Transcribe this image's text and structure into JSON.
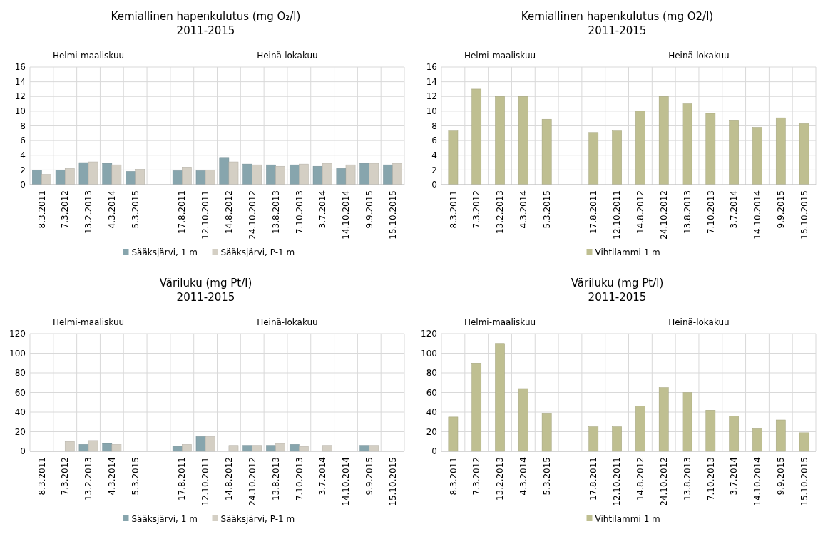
{
  "chart_data": [
    {
      "type": "bar",
      "title": "Kemiallinen hapenkulutus (mg O₂/l)",
      "subtitle": "2011-2015",
      "annotations": [
        "Helmi-maaliskuu",
        "Heinä-lokakuu"
      ],
      "categories": [
        "8.3.2011",
        "7.3.2012",
        "13.2.2013",
        "4.3.2014",
        "5.3.2015",
        null,
        "17.8.2011",
        "12.10.2011",
        "14.8.2012",
        "24.10.2012",
        "13.8.2013",
        "7.10.2013",
        "3.7.2014",
        "14.10.2014",
        "9.9.2015",
        "15.10.2015"
      ],
      "series": [
        {
          "name": "Sääksjärvi, 1 m",
          "color": "#87a5ad",
          "values": [
            2.0,
            2.0,
            3.0,
            2.9,
            1.8,
            null,
            1.9,
            1.9,
            3.7,
            2.8,
            2.7,
            2.7,
            2.5,
            2.2,
            2.9,
            2.7
          ]
        },
        {
          "name": "Sääksjärvi, P-1 m",
          "color": "#d4cfc4",
          "values": [
            1.4,
            2.2,
            3.1,
            2.7,
            2.1,
            null,
            2.4,
            2.0,
            3.1,
            2.7,
            2.5,
            2.8,
            2.9,
            2.7,
            2.9,
            2.9
          ]
        }
      ],
      "ylim": [
        0,
        16
      ],
      "yticks": [
        0,
        2,
        4,
        6,
        8,
        10,
        12,
        14,
        16
      ],
      "grid": true,
      "legend": "bottom"
    },
    {
      "type": "bar",
      "title": "Kemiallinen hapenkulutus (mg O2/l)",
      "subtitle": "2011-2015",
      "annotations": [
        "Helmi-maaliskuu",
        "Heinä-lokakuu"
      ],
      "categories": [
        "8.3.2011",
        "7.3.2012",
        "13.2.2013",
        "4.3.2014",
        "5.3.2015",
        null,
        "17.8.2011",
        "12.10.2011",
        "14.8.2012",
        "24.10.2012",
        "13.8.2013",
        "7.10.2013",
        "3.7.2014",
        "14.10.2014",
        "9.9.2015",
        "15.10.2015"
      ],
      "series": [
        {
          "name": "Vihtilammi 1 m",
          "color": "#bfbf91",
          "values": [
            7.3,
            13,
            12,
            12,
            8.9,
            null,
            7.1,
            7.3,
            10,
            12,
            11,
            9.7,
            8.7,
            7.8,
            9.1,
            8.3
          ]
        }
      ],
      "ylim": [
        0,
        16
      ],
      "yticks": [
        0,
        2,
        4,
        6,
        8,
        10,
        12,
        14,
        16
      ],
      "grid": true,
      "legend": "bottom"
    },
    {
      "type": "bar",
      "title": "Väriluku (mg Pt/l)",
      "subtitle": "2011-2015",
      "annotations": [
        "Helmi-maaliskuu",
        "Heinä-lokakuu"
      ],
      "categories": [
        "8.3.2011",
        "7.3.2012",
        "13.2.2013",
        "4.3.2014",
        "5.3.2015",
        null,
        "17.8.2011",
        "12.10.2011",
        "14.8.2012",
        "24.10.2012",
        "13.8.2013",
        "7.10.2013",
        "3.7.2014",
        "14.10.2014",
        "9.9.2015",
        "15.10.2015"
      ],
      "series": [
        {
          "name": "Sääksjärvi, 1 m",
          "color": "#87a5ad",
          "values": [
            null,
            null,
            7,
            8,
            null,
            null,
            5,
            15,
            null,
            6,
            6,
            7,
            null,
            null,
            6,
            null
          ]
        },
        {
          "name": "Sääksjärvi, P-1 m",
          "color": "#d4cfc4",
          "values": [
            null,
            10,
            11,
            7,
            null,
            null,
            7,
            15,
            6,
            6,
            8,
            5,
            6,
            null,
            6,
            null
          ]
        }
      ],
      "ylim": [
        0,
        120
      ],
      "yticks": [
        0,
        20,
        40,
        60,
        80,
        100,
        120
      ],
      "grid": true,
      "legend": "bottom"
    },
    {
      "type": "bar",
      "title": "Väriluku (mg Pt/l)",
      "subtitle": "2011-2015",
      "annotations": [
        "Helmi-maaliskuu",
        "Heinä-lokakuu"
      ],
      "categories": [
        "8.3.2011",
        "7.3.2012",
        "13.2.2013",
        "4.3.2014",
        "5.3.2015",
        null,
        "17.8.2011",
        "12.10.2011",
        "14.8.2012",
        "24.10.2012",
        "13.8.2013",
        "7.10.2013",
        "3.7.2014",
        "14.10.2014",
        "9.9.2015",
        "15.10.2015"
      ],
      "series": [
        {
          "name": "Vihtilammi 1 m",
          "color": "#bfbf91",
          "values": [
            35,
            90,
            110,
            64,
            39,
            null,
            25,
            25,
            46,
            65,
            60,
            42,
            36,
            23,
            32,
            19
          ]
        }
      ],
      "ylim": [
        0,
        120
      ],
      "yticks": [
        0,
        20,
        40,
        60,
        80,
        100,
        120
      ],
      "grid": true,
      "legend": "bottom"
    }
  ]
}
